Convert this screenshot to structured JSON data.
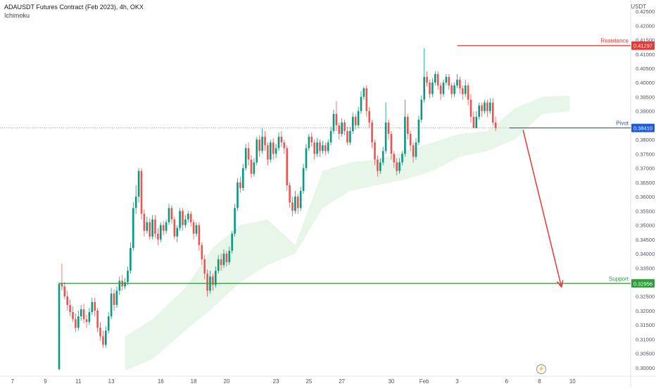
{
  "header": {
    "title": "ADAUSDT Futures Contract (Feb 2023), 4h, OKX",
    "indicator": "Ichimoku",
    "currency": "USDT"
  },
  "colors": {
    "bull": "#26a69a",
    "bull_dark": "#089981",
    "bear": "#ef5350",
    "cloud": "#e8f5e9",
    "cloud_bear": "#fdecec",
    "resistance": "#e53935",
    "pivot": "#1e5bd8",
    "support": "#2e9e3a",
    "arrow": "#e53935",
    "axis_text": "#50535e"
  },
  "chart_data": {
    "type": "candlestick",
    "y_axis": {
      "ticks": [
        "0.42500",
        "0.42000",
        "0.41500",
        "0.41000",
        "0.40500",
        "0.40000",
        "0.39500",
        "0.39000",
        "0.38500",
        "0.38000",
        "0.37500",
        "0.37000",
        "0.36500",
        "0.36000",
        "0.35500",
        "0.35000",
        "0.34500",
        "0.34000",
        "0.33500",
        "0.33000",
        "0.32500",
        "0.32000",
        "0.31500",
        "0.31000",
        "0.30500",
        "0.30000"
      ],
      "range": [
        0.2975,
        0.4265
      ]
    },
    "x_axis": {
      "ticks": [
        {
          "label": "7",
          "idx": -17
        },
        {
          "label": "9",
          "idx": -5
        },
        {
          "label": "11",
          "idx": 7
        },
        {
          "label": "13",
          "idx": 19
        },
        {
          "label": "16",
          "idx": 37
        },
        {
          "label": "18",
          "idx": 49
        },
        {
          "label": "20",
          "idx": 61
        },
        {
          "label": "23",
          "idx": 79
        },
        {
          "label": "25",
          "idx": 91
        },
        {
          "label": "27",
          "idx": 103
        },
        {
          "label": "30",
          "idx": 121
        },
        {
          "label": "Feb",
          "idx": 133
        },
        {
          "label": "3",
          "idx": 145
        },
        {
          "label": "6",
          "idx": 163
        },
        {
          "label": "8",
          "idx": 175
        },
        {
          "label": "10",
          "idx": 187
        }
      ]
    },
    "levels": [
      {
        "name": "Resistance",
        "value": 0.41297,
        "label": "0.41297",
        "start_idx": 145,
        "color_key": "resistance"
      },
      {
        "name": "Pivot",
        "value": 0.3841,
        "label": "0.38410",
        "start_idx": 164,
        "color_key": "pivot"
      },
      {
        "name": "Support",
        "value": 0.32956,
        "label": "0.32956",
        "start_idx": 0,
        "color_key": "support"
      }
    ],
    "current_price": 0.3841,
    "projection_arrow": {
      "from_idx": 169,
      "from_value": 0.3834,
      "to_idx": 183,
      "to_value": 0.3283
    },
    "candles_ohlc": [
      [
        0.2995,
        0.3294,
        0.299,
        0.33
      ],
      [
        0.3295,
        0.3285,
        0.327,
        0.3365
      ],
      [
        0.3285,
        0.325,
        0.324,
        0.33
      ],
      [
        0.325,
        0.322,
        0.32,
        0.327
      ],
      [
        0.322,
        0.3195,
        0.318,
        0.324
      ],
      [
        0.3195,
        0.317,
        0.316,
        0.3215
      ],
      [
        0.317,
        0.314,
        0.3125,
        0.319
      ],
      [
        0.314,
        0.318,
        0.313,
        0.32
      ],
      [
        0.318,
        0.3205,
        0.3165,
        0.322
      ],
      [
        0.3205,
        0.317,
        0.3155,
        0.3225
      ],
      [
        0.317,
        0.316,
        0.314,
        0.3185
      ],
      [
        0.316,
        0.3195,
        0.315,
        0.321
      ],
      [
        0.3195,
        0.323,
        0.3185,
        0.3245
      ],
      [
        0.323,
        0.32,
        0.318,
        0.3245
      ],
      [
        0.32,
        0.314,
        0.3125,
        0.321
      ],
      [
        0.314,
        0.311,
        0.3095,
        0.316
      ],
      [
        0.311,
        0.308,
        0.307,
        0.313
      ],
      [
        0.308,
        0.313,
        0.307,
        0.3145
      ],
      [
        0.313,
        0.318,
        0.312,
        0.3195
      ],
      [
        0.318,
        0.326,
        0.317,
        0.328
      ],
      [
        0.326,
        0.322,
        0.32,
        0.3275
      ],
      [
        0.322,
        0.327,
        0.321,
        0.3285
      ],
      [
        0.327,
        0.3305,
        0.3255,
        0.332
      ],
      [
        0.3305,
        0.3285,
        0.327,
        0.3325
      ],
      [
        0.3285,
        0.33,
        0.3275,
        0.3315
      ],
      [
        0.33,
        0.334,
        0.329,
        0.3355
      ],
      [
        0.334,
        0.342,
        0.333,
        0.344
      ],
      [
        0.342,
        0.356,
        0.341,
        0.358
      ],
      [
        0.356,
        0.36,
        0.354,
        0.364
      ],
      [
        0.36,
        0.369,
        0.358,
        0.37
      ],
      [
        0.369,
        0.354,
        0.352,
        0.37
      ],
      [
        0.354,
        0.348,
        0.346,
        0.3555
      ],
      [
        0.348,
        0.351,
        0.347,
        0.353
      ],
      [
        0.351,
        0.346,
        0.345,
        0.3525
      ],
      [
        0.346,
        0.352,
        0.345,
        0.3535
      ],
      [
        0.352,
        0.347,
        0.3455,
        0.3535
      ],
      [
        0.347,
        0.345,
        0.343,
        0.349
      ],
      [
        0.345,
        0.35,
        0.344,
        0.351
      ],
      [
        0.35,
        0.348,
        0.3465,
        0.3515
      ],
      [
        0.348,
        0.351,
        0.347,
        0.352
      ],
      [
        0.351,
        0.356,
        0.35,
        0.3575
      ],
      [
        0.356,
        0.352,
        0.3505,
        0.357
      ],
      [
        0.352,
        0.346,
        0.345,
        0.353
      ],
      [
        0.346,
        0.349,
        0.344,
        0.35
      ],
      [
        0.349,
        0.355,
        0.348,
        0.356
      ],
      [
        0.355,
        0.35,
        0.348,
        0.356
      ],
      [
        0.35,
        0.352,
        0.349,
        0.3535
      ],
      [
        0.352,
        0.354,
        0.351,
        0.355
      ],
      [
        0.354,
        0.351,
        0.3495,
        0.355
      ],
      [
        0.351,
        0.347,
        0.345,
        0.352
      ],
      [
        0.347,
        0.35,
        0.346,
        0.351
      ],
      [
        0.35,
        0.343,
        0.341,
        0.351
      ],
      [
        0.343,
        0.338,
        0.336,
        0.344
      ],
      [
        0.338,
        0.333,
        0.331,
        0.3395
      ],
      [
        0.333,
        0.327,
        0.325,
        0.3345
      ],
      [
        0.327,
        0.332,
        0.326,
        0.334
      ],
      [
        0.332,
        0.329,
        0.327,
        0.333
      ],
      [
        0.329,
        0.334,
        0.328,
        0.3355
      ],
      [
        0.334,
        0.338,
        0.333,
        0.3395
      ],
      [
        0.338,
        0.336,
        0.334,
        0.34
      ],
      [
        0.336,
        0.34,
        0.335,
        0.3415
      ],
      [
        0.34,
        0.337,
        0.3355,
        0.341
      ],
      [
        0.337,
        0.341,
        0.336,
        0.3425
      ],
      [
        0.341,
        0.347,
        0.34,
        0.348
      ],
      [
        0.347,
        0.356,
        0.346,
        0.3575
      ],
      [
        0.356,
        0.365,
        0.355,
        0.3665
      ],
      [
        0.365,
        0.363,
        0.3615,
        0.367
      ],
      [
        0.363,
        0.37,
        0.362,
        0.3715
      ],
      [
        0.37,
        0.377,
        0.369,
        0.3785
      ],
      [
        0.377,
        0.373,
        0.371,
        0.379
      ],
      [
        0.373,
        0.368,
        0.3665,
        0.3745
      ],
      [
        0.368,
        0.372,
        0.367,
        0.3735
      ],
      [
        0.372,
        0.38,
        0.371,
        0.381
      ],
      [
        0.38,
        0.376,
        0.374,
        0.3815
      ],
      [
        0.376,
        0.381,
        0.375,
        0.384
      ],
      [
        0.381,
        0.378,
        0.376,
        0.383
      ],
      [
        0.378,
        0.373,
        0.371,
        0.379
      ],
      [
        0.373,
        0.379,
        0.372,
        0.38
      ],
      [
        0.379,
        0.375,
        0.373,
        0.3805
      ],
      [
        0.375,
        0.377,
        0.3735,
        0.3785
      ],
      [
        0.377,
        0.381,
        0.376,
        0.3825
      ],
      [
        0.381,
        0.379,
        0.3775,
        0.383
      ],
      [
        0.379,
        0.377,
        0.375,
        0.38
      ],
      [
        0.377,
        0.364,
        0.362,
        0.378
      ],
      [
        0.364,
        0.358,
        0.356,
        0.365
      ],
      [
        0.358,
        0.355,
        0.353,
        0.36
      ],
      [
        0.355,
        0.36,
        0.354,
        0.362
      ],
      [
        0.36,
        0.356,
        0.354,
        0.361
      ],
      [
        0.356,
        0.362,
        0.355,
        0.3635
      ],
      [
        0.362,
        0.37,
        0.361,
        0.3715
      ],
      [
        0.37,
        0.377,
        0.369,
        0.3785
      ],
      [
        0.377,
        0.381,
        0.376,
        0.382
      ],
      [
        0.381,
        0.379,
        0.3775,
        0.3825
      ],
      [
        0.379,
        0.375,
        0.373,
        0.38
      ],
      [
        0.375,
        0.379,
        0.374,
        0.3805
      ],
      [
        0.379,
        0.376,
        0.374,
        0.38
      ],
      [
        0.376,
        0.378,
        0.375,
        0.3795
      ],
      [
        0.378,
        0.376,
        0.3745,
        0.379
      ],
      [
        0.376,
        0.379,
        0.375,
        0.38
      ],
      [
        0.379,
        0.383,
        0.378,
        0.3845
      ],
      [
        0.383,
        0.389,
        0.382,
        0.3905
      ],
      [
        0.389,
        0.385,
        0.383,
        0.3935
      ],
      [
        0.385,
        0.382,
        0.38,
        0.386
      ],
      [
        0.382,
        0.386,
        0.381,
        0.3875
      ],
      [
        0.386,
        0.383,
        0.3815,
        0.387
      ],
      [
        0.383,
        0.379,
        0.378,
        0.3845
      ],
      [
        0.379,
        0.383,
        0.378,
        0.3845
      ],
      [
        0.383,
        0.388,
        0.382,
        0.3895
      ],
      [
        0.388,
        0.385,
        0.3835,
        0.389
      ],
      [
        0.385,
        0.39,
        0.384,
        0.3915
      ],
      [
        0.39,
        0.395,
        0.389,
        0.397
      ],
      [
        0.395,
        0.398,
        0.394,
        0.3985
      ],
      [
        0.398,
        0.39,
        0.388,
        0.399
      ],
      [
        0.39,
        0.386,
        0.384,
        0.3915
      ],
      [
        0.386,
        0.379,
        0.377,
        0.387
      ],
      [
        0.379,
        0.373,
        0.371,
        0.38
      ],
      [
        0.373,
        0.369,
        0.367,
        0.3745
      ],
      [
        0.369,
        0.372,
        0.368,
        0.3735
      ],
      [
        0.372,
        0.376,
        0.371,
        0.3775
      ],
      [
        0.376,
        0.386,
        0.375,
        0.393
      ],
      [
        0.386,
        0.382,
        0.38,
        0.387
      ],
      [
        0.382,
        0.375,
        0.373,
        0.383
      ],
      [
        0.375,
        0.372,
        0.37,
        0.376
      ],
      [
        0.372,
        0.369,
        0.3675,
        0.3735
      ],
      [
        0.369,
        0.372,
        0.368,
        0.3735
      ],
      [
        0.372,
        0.375,
        0.371,
        0.376
      ],
      [
        0.375,
        0.388,
        0.374,
        0.394
      ],
      [
        0.388,
        0.382,
        0.38,
        0.389
      ],
      [
        0.382,
        0.378,
        0.376,
        0.383
      ],
      [
        0.378,
        0.374,
        0.372,
        0.379
      ],
      [
        0.374,
        0.379,
        0.373,
        0.3805
      ],
      [
        0.379,
        0.387,
        0.378,
        0.3885
      ],
      [
        0.387,
        0.394,
        0.386,
        0.3955
      ],
      [
        0.394,
        0.402,
        0.393,
        0.412
      ],
      [
        0.402,
        0.4,
        0.3985,
        0.404
      ],
      [
        0.4,
        0.396,
        0.3945,
        0.401
      ],
      [
        0.396,
        0.4,
        0.395,
        0.4015
      ],
      [
        0.4,
        0.403,
        0.399,
        0.404
      ],
      [
        0.403,
        0.399,
        0.3975,
        0.404
      ],
      [
        0.399,
        0.396,
        0.394,
        0.4
      ],
      [
        0.396,
        0.4,
        0.395,
        0.401
      ],
      [
        0.4,
        0.402,
        0.399,
        0.403
      ],
      [
        0.402,
        0.399,
        0.3975,
        0.403
      ],
      [
        0.399,
        0.396,
        0.3945,
        0.4
      ],
      [
        0.396,
        0.399,
        0.395,
        0.4
      ],
      [
        0.399,
        0.401,
        0.398,
        0.403
      ],
      [
        0.401,
        0.398,
        0.396,
        0.402
      ],
      [
        0.398,
        0.396,
        0.394,
        0.399
      ],
      [
        0.396,
        0.399,
        0.395,
        0.401
      ],
      [
        0.399,
        0.394,
        0.392,
        0.4
      ],
      [
        0.394,
        0.388,
        0.386,
        0.396
      ],
      [
        0.388,
        0.384,
        0.3841,
        0.39
      ],
      [
        0.384,
        0.388,
        0.3841,
        0.39
      ],
      [
        0.388,
        0.392,
        0.387,
        0.393
      ],
      [
        0.392,
        0.39,
        0.388,
        0.393
      ],
      [
        0.39,
        0.393,
        0.389,
        0.394
      ],
      [
        0.393,
        0.39,
        0.388,
        0.394
      ],
      [
        0.39,
        0.393,
        0.389,
        0.3945
      ],
      [
        0.393,
        0.386,
        0.385,
        0.3945
      ],
      [
        0.386,
        0.3841,
        0.383,
        0.388
      ]
    ],
    "cloud": [
      {
        "idx": 0,
        "top": null,
        "bot": null
      },
      {
        "idx": 24,
        "top": 0.311,
        "bot": 0.299
      },
      {
        "idx": 34,
        "top": 0.317,
        "bot": 0.303
      },
      {
        "idx": 46,
        "top": 0.328,
        "bot": 0.313
      },
      {
        "idx": 56,
        "top": 0.342,
        "bot": 0.321
      },
      {
        "idx": 66,
        "top": 0.35,
        "bot": 0.33
      },
      {
        "idx": 76,
        "top": 0.352,
        "bot": 0.336
      },
      {
        "idx": 86,
        "top": 0.343,
        "bot": 0.34
      },
      {
        "idx": 96,
        "top": 0.369,
        "bot": 0.356
      },
      {
        "idx": 106,
        "top": 0.372,
        "bot": 0.362
      },
      {
        "idx": 116,
        "top": 0.373,
        "bot": 0.364
      },
      {
        "idx": 126,
        "top": 0.376,
        "bot": 0.366
      },
      {
        "idx": 136,
        "top": 0.379,
        "bot": 0.369
      },
      {
        "idx": 146,
        "top": 0.382,
        "bot": 0.374
      },
      {
        "idx": 156,
        "top": 0.383,
        "bot": 0.376
      },
      {
        "idx": 166,
        "top": 0.391,
        "bot": 0.38
      },
      {
        "idx": 176,
        "top": 0.395,
        "bot": 0.389
      },
      {
        "idx": 186,
        "top": 0.3955,
        "bot": 0.39
      }
    ]
  }
}
